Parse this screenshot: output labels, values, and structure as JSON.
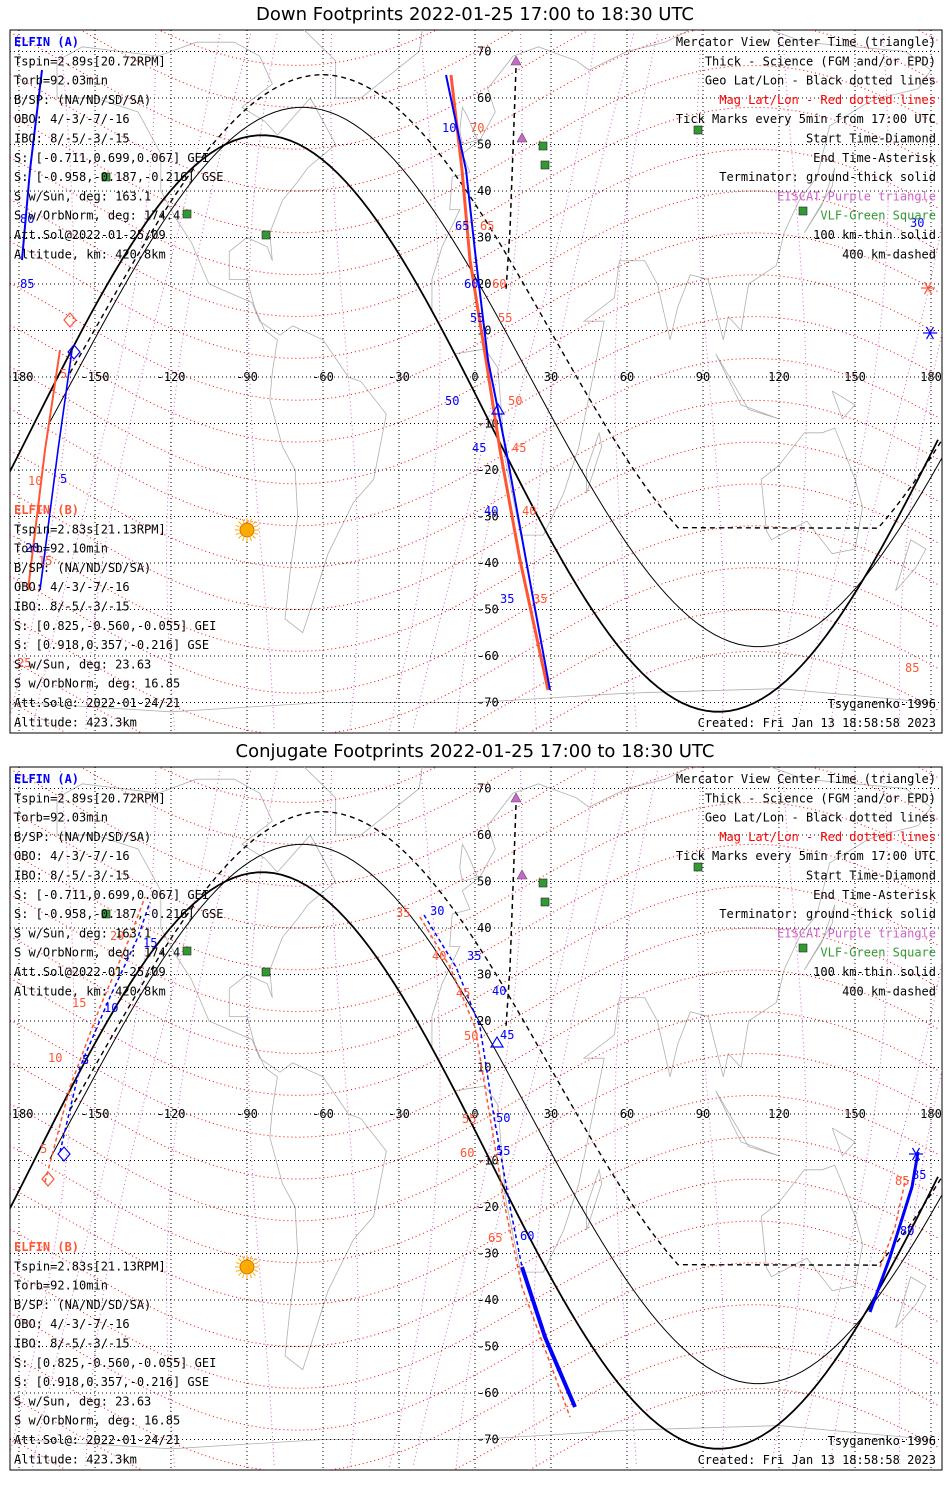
{
  "panels": [
    {
      "title": "Down Footprints 2022-01-25 17:00 to 18:30 UTC",
      "left_info_a": [
        "ELFIN (A)",
        "Tspin=2.89s[20.72RPM]",
        "Torb=92.03min",
        "B/SP: (NA/ND/SD/SA)",
        "OBO: 4/-3/-7/-16",
        "IBO: 8/-5/-3/-15",
        "S: [-0.711,0.699,0.067] GEI",
        "S: [-0.958,-0.187,-0.216] GSE",
        "S w/Sun, deg: 163.1",
        "S w/OrbNorm, deg: 174.4",
        "Att.Sol@2022-01-25/09",
        "Altitude, km: 420.8km"
      ],
      "left_info_b": [
        "ELFIN (B)",
        "Tspin=2.83s[21.13RPM]",
        "Torb=92.10min",
        "B/SP: (NA/ND/SD/SA)",
        "OBO: 4/-3/-7/-16",
        "IBO: 8/-5/-3/-15",
        "S: [0.825,-0.560,-0.055] GEI",
        "S: [0.918,0.357,-0.216] GSE",
        "S w/Sun, deg: 23.63",
        "S w/OrbNorm, deg: 16.85",
        "Att.Sol@: 2022-01-24/21",
        "Altitude: 423.3km"
      ],
      "model": "Tsyganenko-1996",
      "created": "Created: Fri Jan 13 18:58:58 2023",
      "tick_labels_a": [
        {
          "t": "85",
          "c": "blue"
        },
        {
          "t": "80",
          "c": "blue"
        },
        {
          "t": "5",
          "c": "red"
        },
        {
          "t": "10",
          "c": "red"
        },
        {
          "t": "5",
          "c": "blue"
        },
        {
          "t": "15",
          "c": "red"
        },
        {
          "t": "10",
          "c": "blue"
        },
        {
          "t": "70",
          "c": "red"
        },
        {
          "t": "65",
          "c": "blue"
        },
        {
          "t": "65",
          "c": "red"
        },
        {
          "t": "60",
          "c": "blue"
        },
        {
          "t": "60",
          "c": "red"
        },
        {
          "t": "55",
          "c": "blue"
        },
        {
          "t": "55",
          "c": "red"
        },
        {
          "t": "50",
          "c": "blue"
        },
        {
          "t": "50",
          "c": "red"
        },
        {
          "t": "45",
          "c": "blue"
        },
        {
          "t": "45",
          "c": "red"
        },
        {
          "t": "40",
          "c": "blue"
        },
        {
          "t": "40",
          "c": "red"
        },
        {
          "t": "35",
          "c": "blue"
        },
        {
          "t": "35",
          "c": "red"
        },
        {
          "t": "30",
          "c": "blue"
        },
        {
          "t": "85",
          "c": "red"
        },
        {
          "t": "25",
          "c": "red"
        },
        {
          "t": "20",
          "c": "blue"
        },
        {
          "t": "15",
          "c": "blue"
        }
      ]
    },
    {
      "title": "Conjugate Footprints 2022-01-25 17:00 to 18:30 UTC",
      "left_info_a": [
        "ELFIN (A)",
        "Tspin=2.89s[20.72RPM]",
        "Torb=92.03min",
        "B/SP: (NA/ND/SD/SA)",
        "OBO: 4/-3/-7/-16",
        "IBO: 8/-5/-3/-15",
        "S: [-0.711,0.699,0.067] GEI",
        "S: [-0.958,-0.187,-0.216] GSE",
        "S w/Sun, deg: 163.1",
        "S w/OrbNorm, deg: 174.4",
        "Att.Sol@2022-01-25/09",
        "Altitude, km: 420.8km"
      ],
      "left_info_b": [
        "ELFIN (B)",
        "Tspin=2.83s[21.13RPM]",
        "Torb=92.10min",
        "B/SP: (NA/ND/SD/SA)",
        "OBO: 4/-3/-7/-16",
        "IBO: 8/-5/-3/-15",
        "S: [0.825,-0.560,-0.055] GEI",
        "S: [0.918,0.357,-0.216] GSE",
        "S w/Sun, deg: 23.63",
        "S w/OrbNorm, deg: 16.85",
        "Att.Sol@: 2022-01-24/21",
        "Altitude: 423.3km"
      ],
      "model": "Tsyganenko-1996",
      "created": "Created: Fri Jan 13 18:58:58 2023",
      "tick_labels_a": [
        {
          "t": "20",
          "c": "red"
        },
        {
          "t": "15",
          "c": "blue"
        },
        {
          "t": "15",
          "c": "red"
        },
        {
          "t": "10",
          "c": "blue"
        },
        {
          "t": "10",
          "c": "red"
        },
        {
          "t": "5",
          "c": "blue"
        },
        {
          "t": "5",
          "c": "red"
        },
        {
          "t": "35",
          "c": "red"
        },
        {
          "t": "30",
          "c": "blue"
        },
        {
          "t": "40",
          "c": "red"
        },
        {
          "t": "35",
          "c": "blue"
        },
        {
          "t": "45",
          "c": "red"
        },
        {
          "t": "40",
          "c": "blue"
        },
        {
          "t": "50",
          "c": "red"
        },
        {
          "t": "45",
          "c": "blue"
        },
        {
          "t": "55",
          "c": "red"
        },
        {
          "t": "50",
          "c": "blue"
        },
        {
          "t": "60",
          "c": "red"
        },
        {
          "t": "55",
          "c": "blue"
        },
        {
          "t": "65",
          "c": "red"
        },
        {
          "t": "60",
          "c": "blue"
        },
        {
          "t": "85",
          "c": "blue"
        },
        {
          "t": "85",
          "c": "red"
        },
        {
          "t": "80",
          "c": "blue"
        }
      ]
    }
  ],
  "legend": [
    "Mercator View Center Time (triangle)",
    "Thick - Science (FGM and/or EPD)",
    "Geo Lat/Lon - Black dotted lines",
    "Mag Lat/Lon - Red dotted lines",
    "Tick Marks every 5min from 17:00 UTC",
    "Start Time-Diamond",
    "End Time-Asterisk",
    "Terminator: ground-thick solid",
    "EISCAT-Purple triangle",
    "VLF-Green Square",
    "100 km-thin solid",
    "400 km-dashed"
  ],
  "legend_colors": [
    "#000000",
    "#000000",
    "#000000",
    "#ff0000",
    "#000000",
    "#000000",
    "#000000",
    "#000000",
    "#cc66cc",
    "#339933",
    "#000000",
    "#000000"
  ],
  "lon_ticks": [
    "-180",
    "-150",
    "-120",
    "-90",
    "-60",
    "-30",
    "0",
    "30",
    "60",
    "90",
    "120",
    "150",
    "180"
  ],
  "lat_ticks": [
    "70",
    "60",
    "50",
    "40",
    "30",
    "20",
    "10",
    "0",
    "-10",
    "-20",
    "-30",
    "-40",
    "-50",
    "-60",
    "-70"
  ],
  "colors": {
    "elfin_a": "#0000ff",
    "elfin_b": "#ff5533",
    "mag_grid": "#ff0000",
    "geo_grid": "#000000",
    "eiscat": "#cc66cc",
    "vlf": "#339933",
    "sun": "#ffaa00",
    "coast": "#b0b0b0"
  },
  "icons": {
    "sun": "sun-icon",
    "start": "diamond-icon",
    "end": "asterisk-icon",
    "center": "triangle-icon",
    "vlf": "square-icon"
  }
}
